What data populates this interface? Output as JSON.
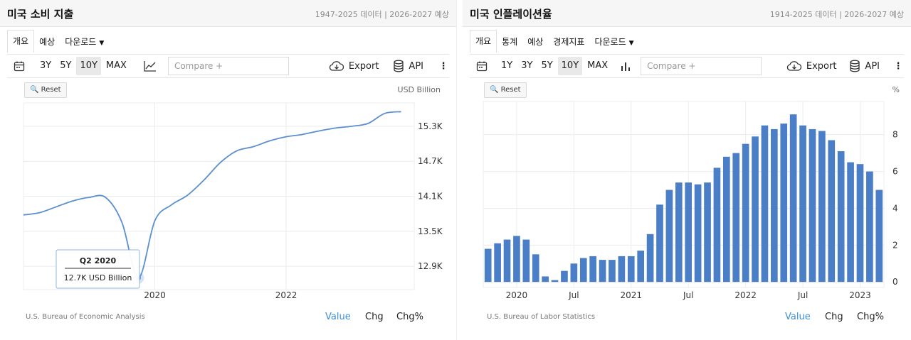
{
  "panels": [
    {
      "title": "미국 소비 지출",
      "subtitle": "1947-2025 데이터 | 2026-2027 예상",
      "tabs": [
        {
          "label": "개요",
          "active": true
        },
        {
          "label": "예상",
          "active": false
        },
        {
          "label": "다운로드",
          "active": false,
          "dropdown": true
        }
      ],
      "toolbar": {
        "ranges": [
          {
            "label": "3Y",
            "active": false
          },
          {
            "label": "5Y",
            "active": false
          },
          {
            "label": "10Y",
            "active": true
          },
          {
            "label": "MAX",
            "active": false
          }
        ],
        "compare_placeholder": "Compare +",
        "export_label": "Export",
        "api_label": "API"
      },
      "reset_label": "Reset",
      "unit": "USD Billion",
      "source": "U.S. Bureau of Economic Analysis",
      "modes": [
        {
          "label": "Value",
          "active": true
        },
        {
          "label": "Chg",
          "active": false
        },
        {
          "label": "Chg%",
          "active": false
        }
      ],
      "tooltip": {
        "title": "Q2 2020",
        "value": "12.7K USD Billion"
      }
    },
    {
      "title": "미국 인플레이션율",
      "subtitle": "1914-2025 데이터 | 2026-2027 예상",
      "tabs": [
        {
          "label": "개요",
          "active": true
        },
        {
          "label": "통계",
          "active": false
        },
        {
          "label": "예상",
          "active": false
        },
        {
          "label": "경제지표",
          "active": false
        },
        {
          "label": "다운로드",
          "active": false,
          "dropdown": true
        }
      ],
      "toolbar": {
        "ranges": [
          {
            "label": "1Y",
            "active": false
          },
          {
            "label": "3Y",
            "active": false
          },
          {
            "label": "5Y",
            "active": false
          },
          {
            "label": "10Y",
            "active": true
          },
          {
            "label": "MAX",
            "active": false
          }
        ],
        "compare_placeholder": "Compare +",
        "export_label": "Export",
        "api_label": "API"
      },
      "reset_label": "Reset",
      "unit": "%",
      "source": "U.S. Bureau of Labor Statistics",
      "modes": [
        {
          "label": "Value",
          "active": true
        },
        {
          "label": "Chg",
          "active": false
        },
        {
          "label": "Chg%",
          "active": false
        }
      ]
    }
  ],
  "colors": {
    "line": "#5b8fcf",
    "bar": "#4a7ec7",
    "active_mode": "#3a8fd9"
  },
  "chart_data": [
    {
      "type": "line",
      "ylabel": "USD Billion",
      "yticks": [
        12.9,
        13.5,
        14.1,
        14.7,
        15.3
      ],
      "ytick_labels": [
        "12.9K",
        "13.5K",
        "14.1K",
        "14.7K",
        "15.3K"
      ],
      "ylim": [
        12.5,
        15.7
      ],
      "xticks": [
        {
          "x": 2020.0,
          "label": "2020"
        },
        {
          "x": 2022.0,
          "label": "2022"
        }
      ],
      "xlim": [
        2018.0,
        2023.95
      ],
      "x": [
        2018.0,
        2018.25,
        2018.5,
        2018.75,
        2019.0,
        2019.25,
        2019.5,
        2019.75,
        2020.0,
        2020.25,
        2020.5,
        2020.75,
        2021.0,
        2021.25,
        2021.5,
        2021.75,
        2022.0,
        2022.25,
        2022.5,
        2022.75,
        2023.0,
        2023.25,
        2023.5,
        2023.75
      ],
      "values": [
        13.78,
        13.82,
        13.92,
        14.02,
        14.08,
        14.08,
        13.65,
        12.7,
        13.68,
        13.95,
        14.12,
        14.38,
        14.68,
        14.88,
        14.95,
        15.05,
        15.12,
        15.16,
        15.22,
        15.27,
        15.3,
        15.35,
        15.52,
        15.55
      ],
      "highlight": {
        "x": 2019.75,
        "y": 12.7
      }
    },
    {
      "type": "bar",
      "ylabel": "%",
      "yticks": [
        0,
        2,
        4,
        6,
        8
      ],
      "ylim": [
        -0.3,
        9.8
      ],
      "xticks": [
        {
          "index": 3,
          "label": "2020"
        },
        {
          "index": 9,
          "label": "Jul"
        },
        {
          "index": 15,
          "label": "2021"
        },
        {
          "index": 21,
          "label": "Jul"
        },
        {
          "index": 27,
          "label": "2022"
        },
        {
          "index": 33,
          "label": "Jul"
        },
        {
          "index": 39,
          "label": "2023"
        }
      ],
      "values": [
        1.8,
        2.1,
        2.3,
        2.5,
        2.3,
        1.5,
        0.3,
        0.1,
        0.6,
        1.0,
        1.3,
        1.4,
        1.2,
        1.2,
        1.4,
        1.4,
        1.7,
        2.6,
        4.2,
        5.0,
        5.4,
        5.4,
        5.3,
        5.4,
        6.2,
        6.8,
        7.0,
        7.5,
        7.9,
        8.5,
        8.3,
        8.6,
        9.1,
        8.5,
        8.3,
        8.2,
        7.7,
        7.1,
        6.5,
        6.4,
        6.0,
        5.0
      ]
    }
  ]
}
